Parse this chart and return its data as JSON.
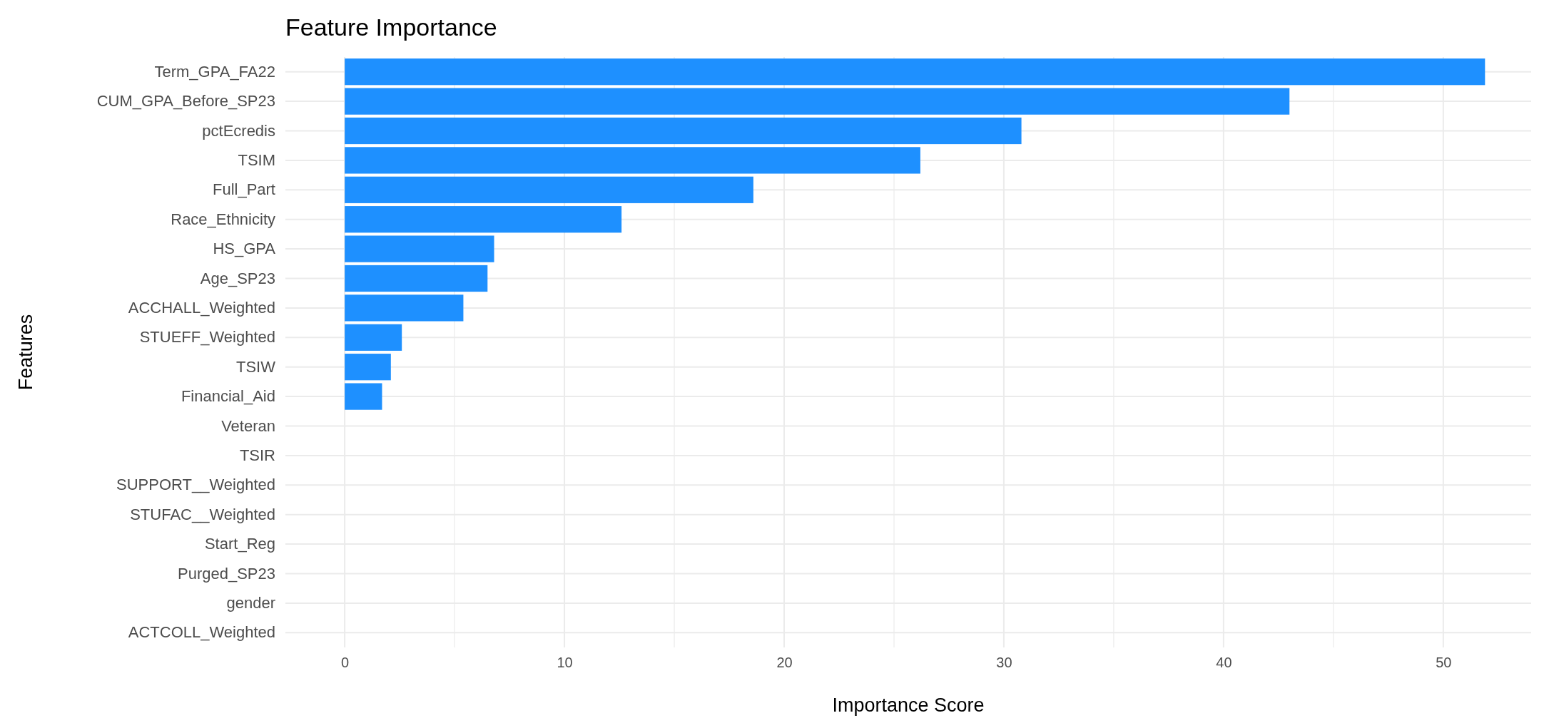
{
  "chart_data": {
    "type": "bar",
    "orientation": "horizontal",
    "title": "Feature Importance",
    "xlabel": "Importance Score",
    "ylabel": "Features",
    "categories": [
      "Term_GPA_FA22",
      "CUM_GPA_Before_SP23",
      "pctEcredis",
      "TSIM",
      "Full_Part",
      "Race_Ethnicity",
      "HS_GPA",
      "Age_SP23",
      "ACCHALL_Weighted",
      "STUEFF_Weighted",
      "TSIW",
      "Financial_Aid",
      "Veteran",
      "TSIR",
      "SUPPORT__Weighted",
      "STUFAC__Weighted",
      "Start_Reg",
      "Purged_SP23",
      "gender",
      "ACTCOLL_Weighted"
    ],
    "values": [
      51.9,
      43.0,
      30.8,
      26.2,
      18.6,
      12.6,
      6.8,
      6.5,
      5.4,
      2.6,
      2.1,
      1.7,
      0,
      0,
      0,
      0,
      0,
      0,
      0,
      0
    ],
    "color": "#1e90ff",
    "xlim": [
      -2.7,
      54
    ],
    "xticks": [
      0,
      {
        "value": 5,
        "label": null
      },
      10,
      {
        "value": 15,
        "label": null
      },
      20,
      {
        "value": 25,
        "label": null
      },
      30,
      {
        "value": 35,
        "label": null
      },
      40,
      {
        "value": 45,
        "label": null
      },
      50
    ],
    "grid": true
  }
}
